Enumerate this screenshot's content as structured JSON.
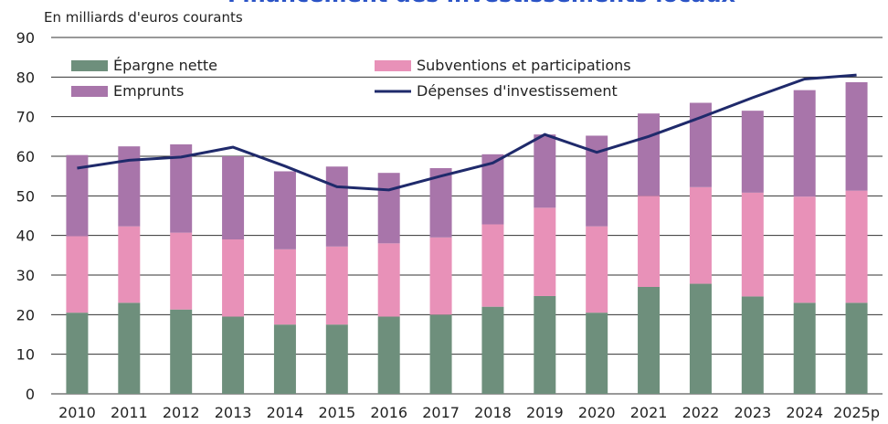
{
  "chart_data": {
    "type": "stacked_bar_line",
    "title": "Financement des investissements locaux",
    "y_label": "En milliards d'euros courants",
    "categories": [
      "2010",
      "2011",
      "2012",
      "2013",
      "2014",
      "2015",
      "2016",
      "2017",
      "2018",
      "2019",
      "2020",
      "2021",
      "2022",
      "2023",
      "2024",
      "2025p"
    ],
    "series": [
      {
        "name": "Épargne nette",
        "color": "#6e8f7c",
        "values": [
          20.5,
          23,
          21.3,
          19.5,
          17.5,
          17.5,
          19.5,
          20,
          22,
          24.7,
          20.5,
          27,
          27.8,
          24.6,
          23,
          23
        ]
      },
      {
        "name": "Subventions et participations",
        "color": "#e891b8",
        "values": [
          19.3,
          19.3,
          19.4,
          19.5,
          19,
          19.7,
          18.5,
          19.5,
          20.8,
          22.3,
          21.8,
          23,
          24.4,
          26.2,
          26.8,
          28.3
        ]
      },
      {
        "name": "Emprunts",
        "color": "#a875aa",
        "values": [
          20.5,
          20.2,
          22.3,
          21,
          19.7,
          20.2,
          17.8,
          17.5,
          17.7,
          18.5,
          22.9,
          20.8,
          21.3,
          20.7,
          26.9,
          27.4
        ]
      },
      {
        "name": "Dépenses d'investissement",
        "color": "#1f2a6b",
        "type": "line",
        "values": [
          57,
          59,
          59.8,
          62.3,
          57.5,
          52.3,
          51.5,
          55,
          58.3,
          65.5,
          61,
          65,
          69.8,
          74.8,
          79.5,
          80.5
        ]
      }
    ],
    "ylim": [
      0,
      90
    ],
    "yticks": [
      0,
      10,
      20,
      30,
      40,
      50,
      60,
      70,
      80,
      90
    ],
    "grid": true,
    "legend": "top-left"
  }
}
